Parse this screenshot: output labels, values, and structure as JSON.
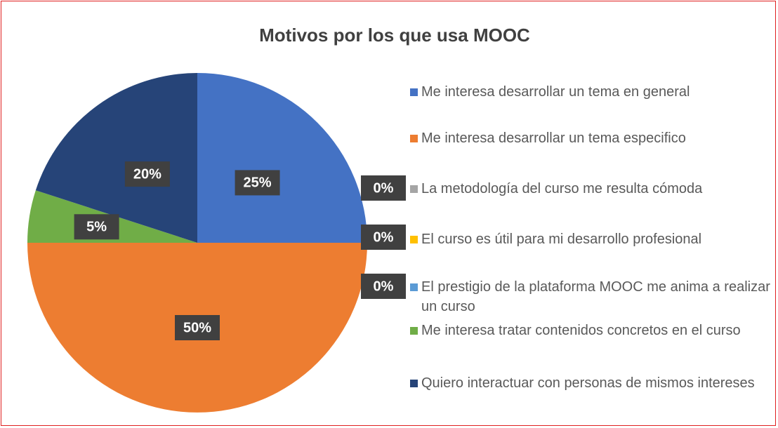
{
  "chart_data": {
    "type": "pie",
    "title": "Motivos por los que usa MOOC",
    "categories": [
      "Me interesa desarrollar un tema en general",
      "Me interesa desarrollar un tema especifico",
      "La metodología del curso me resulta cómoda",
      "El curso es útil para mi desarrollo profesional",
      "El prestigio de la plataforma MOOC me anima a realizar un curso",
      "Me interesa tratar contenidos concretos en el curso",
      "Quiero interactuar con personas de mismos intereses"
    ],
    "values": [
      25,
      50,
      0,
      0,
      0,
      5,
      20
    ],
    "value_labels": [
      "25%",
      "50%",
      "0%",
      "0%",
      "0%",
      "5%",
      "20%"
    ],
    "colors": [
      "#4472c4",
      "#ed7d31",
      "#a5a5a5",
      "#ffc000",
      "#5b9bd5",
      "#70ad47",
      "#264478"
    ],
    "legend": "right"
  }
}
